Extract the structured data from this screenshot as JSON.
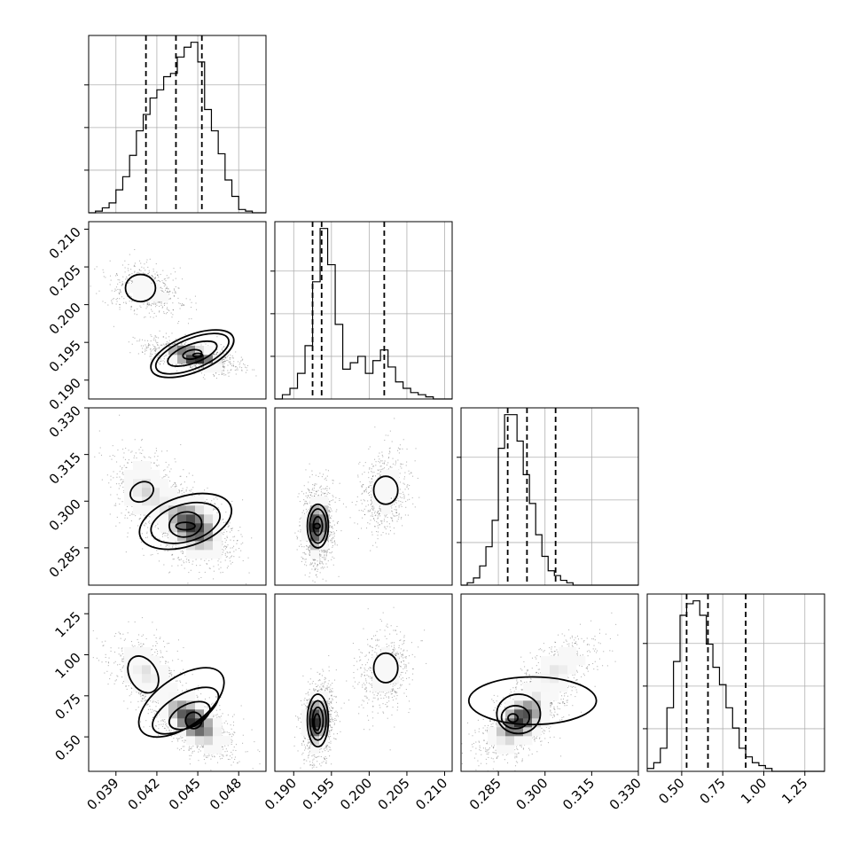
{
  "chart_data": {
    "type": "corner",
    "grid": true,
    "parameters": [
      {
        "range": [
          0.037,
          0.05
        ],
        "ticks": [
          "0.039",
          "0.042",
          "0.045",
          "0.048"
        ],
        "quantiles": [
          0.0412,
          0.0434,
          0.0453
        ]
      },
      {
        "range": [
          0.1875,
          0.211
        ],
        "ticks": [
          "0.190",
          "0.195",
          "0.200",
          "0.205",
          "0.210"
        ],
        "quantiles": [
          0.1925,
          0.1937,
          0.202
        ]
      },
      {
        "range": [
          0.273,
          0.33
        ],
        "ticks": [
          "0.285",
          "0.300",
          "0.315",
          "0.330"
        ],
        "quantiles": [
          0.288,
          0.2942,
          0.3034
        ]
      },
      {
        "range": [
          0.29,
          1.37
        ],
        "ticks": [
          "0.50",
          "0.75",
          "1.00",
          "1.25"
        ],
        "quantiles": [
          0.53,
          0.66,
          0.89
        ]
      }
    ],
    "histograms": [
      {
        "edges_from": 0.037,
        "bin_width": 0.0005,
        "counts": [
          0,
          1,
          3,
          6,
          14,
          22,
          35,
          50,
          60,
          70,
          75,
          83,
          85,
          95,
          101,
          104,
          92,
          63,
          50,
          36,
          20,
          10,
          2,
          1,
          0,
          0
        ]
      },
      {
        "edges_from": 0.1875,
        "bin_width": 0.001,
        "counts": [
          0,
          2,
          5,
          12,
          25,
          55,
          80,
          63,
          35,
          14,
          17,
          20,
          12,
          18,
          23,
          15,
          8,
          5,
          3,
          2,
          1,
          0,
          0,
          0
        ]
      },
      {
        "edges_from": 0.273,
        "bin_width": 0.002,
        "counts": [
          0,
          1,
          3,
          8,
          16,
          27,
          57,
          71,
          71,
          60,
          46,
          34,
          21,
          12,
          6,
          4,
          2,
          1,
          0,
          0,
          0,
          0,
          0,
          0,
          0,
          0,
          0,
          0,
          0
        ]
      },
      {
        "edges_from": 0.29,
        "bin_width": 0.04,
        "counts": [
          1,
          3,
          8,
          22,
          38,
          54,
          58,
          59,
          54,
          44,
          36,
          30,
          22,
          15,
          8,
          5,
          3,
          2,
          1,
          0,
          0,
          0,
          0,
          0,
          0,
          0,
          0
        ]
      }
    ],
    "modes": [
      {
        "weight": 0.3,
        "mean": [
          0.0412,
          0.202,
          0.3035,
          0.9
        ],
        "sd": [
          0.0011,
          0.0014,
          0.0055,
          0.1
        ]
      },
      {
        "weight": 0.7,
        "mean": [
          0.0446,
          0.1932,
          0.292,
          0.6
        ],
        "sd": [
          0.0012,
          0.0008,
          0.005,
          0.09
        ]
      }
    ],
    "contours": {
      "1-0": [
        {
          "cx": 0.0446,
          "cy": 0.1935,
          "rx": 0.00323,
          "ry": 0.00245,
          "rot": -22
        },
        {
          "cx": 0.0446,
          "cy": 0.1935,
          "rx": 0.00285,
          "ry": 0.002,
          "rot": -22
        },
        {
          "cx": 0.0446,
          "cy": 0.1935,
          "rx": 0.0019,
          "ry": 0.00125,
          "rot": -20
        },
        {
          "cx": 0.0446,
          "cy": 0.1934,
          "rx": 0.0007,
          "ry": 0.0006,
          "rot": -10
        },
        {
          "cx": 0.045,
          "cy": 0.1933,
          "rx": 0.00035,
          "ry": 0.00025,
          "rot": 0
        },
        {
          "cx": 0.0408,
          "cy": 0.2022,
          "rx": 0.0011,
          "ry": 0.0018,
          "rot": 0
        }
      ],
      "2-0": [
        {
          "cx": 0.0441,
          "cy": 0.2935,
          "rx": 0.0035,
          "ry": 0.008,
          "rot": -18
        },
        {
          "cx": 0.0441,
          "cy": 0.293,
          "rx": 0.0026,
          "ry": 0.006,
          "rot": -16
        },
        {
          "cx": 0.0441,
          "cy": 0.2925,
          "rx": 0.0012,
          "ry": 0.004,
          "rot": -10
        },
        {
          "cx": 0.0441,
          "cy": 0.292,
          "rx": 0.0007,
          "ry": 0.0012,
          "rot": 0
        },
        {
          "cx": 0.0409,
          "cy": 0.303,
          "rx": 0.0009,
          "ry": 0.003,
          "rot": -30
        }
      ],
      "3-0": [
        {
          "cx": 0.0438,
          "cy": 0.71,
          "rx": 0.0036,
          "ry": 0.15,
          "rot": -35
        },
        {
          "cx": 0.0441,
          "cy": 0.66,
          "rx": 0.0027,
          "ry": 0.1,
          "rot": -30
        },
        {
          "cx": 0.0444,
          "cy": 0.63,
          "rx": 0.0016,
          "ry": 0.07,
          "rot": -25
        },
        {
          "cx": 0.0447,
          "cy": 0.6,
          "rx": 0.0006,
          "ry": 0.05,
          "rot": -15
        },
        {
          "cx": 0.041,
          "cy": 0.88,
          "rx": 0.001,
          "ry": 0.12,
          "rot": -30
        }
      ],
      "2-1": [
        {
          "cx": 0.1932,
          "cy": 0.292,
          "rx": 0.0014,
          "ry": 0.007,
          "rot": 0
        },
        {
          "cx": 0.1932,
          "cy": 0.292,
          "rx": 0.0011,
          "ry": 0.0055,
          "rot": 0
        },
        {
          "cx": 0.1932,
          "cy": 0.292,
          "rx": 0.0006,
          "ry": 0.003,
          "rot": 0
        },
        {
          "cx": 0.1931,
          "cy": 0.292,
          "rx": 0.0004,
          "ry": 0.0008,
          "rot": 0
        },
        {
          "cx": 0.2022,
          "cy": 0.3035,
          "rx": 0.0016,
          "ry": 0.0045,
          "rot": 0
        }
      ],
      "3-1": [
        {
          "cx": 0.1932,
          "cy": 0.6,
          "rx": 0.0014,
          "ry": 0.16,
          "rot": 0
        },
        {
          "cx": 0.1932,
          "cy": 0.6,
          "rx": 0.0011,
          "ry": 0.12,
          "rot": 0
        },
        {
          "cx": 0.1932,
          "cy": 0.6,
          "rx": 0.0007,
          "ry": 0.08,
          "rot": 0
        },
        {
          "cx": 0.1931,
          "cy": 0.59,
          "rx": 0.0004,
          "ry": 0.05,
          "rot": 0
        },
        {
          "cx": 0.2022,
          "cy": 0.92,
          "rx": 0.0016,
          "ry": 0.09,
          "rot": 0
        }
      ],
      "3-2": [
        {
          "cx": 0.296,
          "cy": 0.72,
          "rx": 0.0205,
          "ry": 0.145,
          "rot": 0
        },
        {
          "cx": 0.2915,
          "cy": 0.64,
          "rx": 0.007,
          "ry": 0.12,
          "rot": 0
        },
        {
          "cx": 0.2905,
          "cy": 0.62,
          "rx": 0.0045,
          "ry": 0.07,
          "rot": 0
        },
        {
          "cx": 0.2897,
          "cy": 0.615,
          "rx": 0.0016,
          "ry": 0.025,
          "rot": 0
        }
      ]
    }
  }
}
